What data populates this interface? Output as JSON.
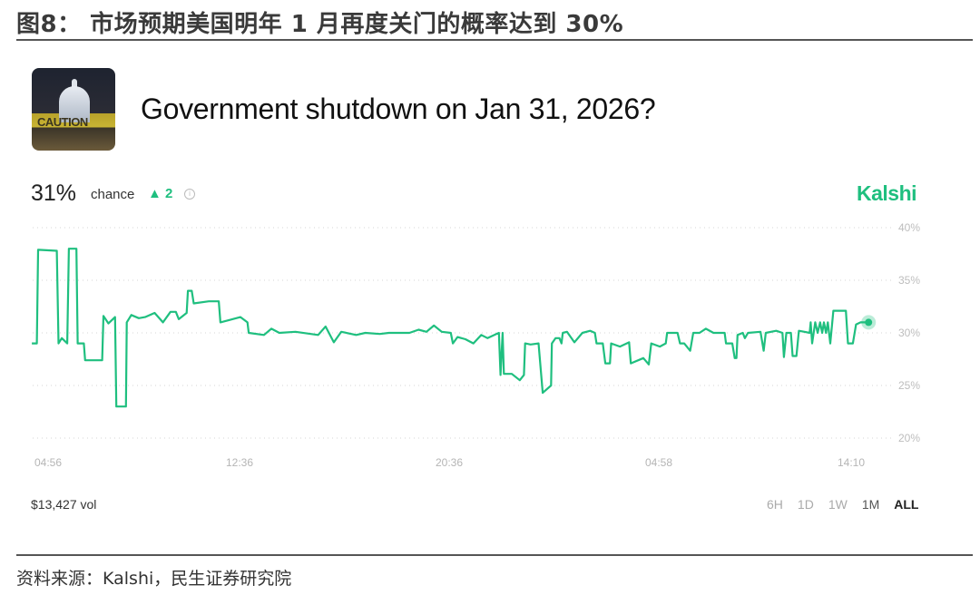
{
  "report": {
    "title": "图8：  市场预期美国明年 1 月再度关门的概率达到 30%",
    "source": "资料来源：Kalshi，民生证券研究院"
  },
  "market": {
    "thumbnail_text": "CAUTION",
    "title": "Government shutdown on Jan 31, 2026?",
    "chance_value": "31%",
    "chance_label": "chance",
    "delta_icon": "triangle-up-icon",
    "delta_value": "▲ 2",
    "info_icon": "info-icon",
    "brand": "Kalshi",
    "volume": "$13,427 vol",
    "ranges": [
      {
        "label": "6H",
        "active": false
      },
      {
        "label": "1D",
        "active": false
      },
      {
        "label": "1W",
        "active": false
      },
      {
        "label": "1M",
        "active": false
      },
      {
        "label": "ALL",
        "active": true
      }
    ]
  },
  "colors": {
    "line": "#1fbf7f",
    "brand": "#1fbf7f",
    "grid": "#d6d6d6"
  },
  "chart_data": {
    "type": "line",
    "title": "",
    "xlabel": "",
    "ylabel": "",
    "ylim": [
      20,
      40
    ],
    "yticks": [
      40,
      35,
      30,
      25,
      20
    ],
    "ytick_labels": [
      "40%",
      "35%",
      "30%",
      "25%",
      "20%"
    ],
    "xtick_labels": [
      "04:56",
      "12:36",
      "20:36",
      "04:58",
      "14:10"
    ],
    "grid": "horizontal-dotted",
    "legend": "none",
    "series": [
      {
        "points": [
          [
            "04:17",
            29
          ],
          [
            "04:29",
            29
          ],
          [
            "04:32",
            37.9
          ],
          [
            "05:17",
            37.8
          ],
          [
            "05:21",
            29
          ],
          [
            "05:29",
            29.5
          ],
          [
            "05:42",
            29
          ],
          [
            "05:46",
            38
          ],
          [
            "06:04",
            38
          ],
          [
            "06:07",
            29
          ],
          [
            "06:22",
            29
          ],
          [
            "06:25",
            27.4
          ],
          [
            "07:06",
            27.4
          ],
          [
            "07:09",
            31.6
          ],
          [
            "07:21",
            30.9
          ],
          [
            "07:37",
            31.5
          ],
          [
            "07:40",
            23
          ],
          [
            "08:03",
            23
          ],
          [
            "08:05",
            31
          ],
          [
            "08:16",
            31.7
          ],
          [
            "08:34",
            31.4
          ],
          [
            "08:49",
            31.5
          ],
          [
            "09:12",
            31.9
          ],
          [
            "09:32",
            31
          ],
          [
            "09:50",
            32
          ],
          [
            "10:03",
            32
          ],
          [
            "10:10",
            31.3
          ],
          [
            "10:29",
            31.9
          ],
          [
            "10:32",
            34
          ],
          [
            "10:41",
            34
          ],
          [
            "10:46",
            32.8
          ],
          [
            "11:22",
            33
          ],
          [
            "11:46",
            33
          ],
          [
            "11:50",
            31
          ],
          [
            "12:38",
            31.5
          ],
          [
            "12:54",
            31
          ],
          [
            "12:57",
            30
          ],
          [
            "13:32",
            29.8
          ],
          [
            "13:49",
            30.4
          ],
          [
            "14:07",
            30
          ],
          [
            "14:44",
            30.1
          ],
          [
            "15:36",
            29.8
          ],
          [
            "15:53",
            30.6
          ],
          [
            "16:12",
            29.1
          ],
          [
            "16:29",
            30.1
          ],
          [
            "17:03",
            29.8
          ],
          [
            "17:24",
            30
          ],
          [
            "17:57",
            29.9
          ],
          [
            "18:18",
            30
          ],
          [
            "19:05",
            30
          ],
          [
            "19:26",
            30.3
          ],
          [
            "19:44",
            30.1
          ],
          [
            "20:01",
            30.7
          ],
          [
            "20:19",
            30.1
          ],
          [
            "20:40",
            30
          ],
          [
            "20:45",
            29
          ],
          [
            "20:56",
            29.6
          ],
          [
            "21:15",
            29.4
          ],
          [
            "21:34",
            29
          ],
          [
            "21:53",
            29.8
          ],
          [
            "22:08",
            29.5
          ],
          [
            "22:29",
            29.9
          ],
          [
            "22:35",
            30
          ],
          [
            "22:39",
            26
          ],
          [
            "22:44",
            30
          ],
          [
            "22:47",
            26.1
          ],
          [
            "23:06",
            26.1
          ],
          [
            "23:25",
            25.5
          ],
          [
            "23:35",
            26
          ],
          [
            "23:38",
            29
          ],
          [
            "23:51",
            28.9
          ],
          [
            "00:10",
            29
          ],
          [
            "00:20",
            24.3
          ],
          [
            "00:40",
            25
          ],
          [
            "00:42",
            29
          ],
          [
            "00:51",
            29.5
          ],
          [
            "01:00",
            29.5
          ],
          [
            "01:05",
            29
          ],
          [
            "01:08",
            30
          ],
          [
            "01:18",
            30.1
          ],
          [
            "01:36",
            29.1
          ],
          [
            "01:55",
            30
          ],
          [
            "02:14",
            30.2
          ],
          [
            "02:25",
            30
          ],
          [
            "02:29",
            29
          ],
          [
            "02:44",
            29
          ],
          [
            "02:50",
            27.1
          ],
          [
            "03:01",
            27.1
          ],
          [
            "03:04",
            29
          ],
          [
            "03:25",
            28.7
          ],
          [
            "03:47",
            29.1
          ],
          [
            "03:51",
            27.1
          ],
          [
            "04:21",
            27.6
          ],
          [
            "04:34",
            27
          ],
          [
            "04:40",
            29
          ],
          [
            "05:01",
            28.7
          ],
          [
            "05:18",
            29
          ],
          [
            "05:22",
            30
          ],
          [
            "05:52",
            30
          ],
          [
            "05:59",
            29
          ],
          [
            "06:11",
            29
          ],
          [
            "06:28",
            28.3
          ],
          [
            "06:37",
            30
          ],
          [
            "06:55",
            30
          ],
          [
            "07:13",
            30.4
          ],
          [
            "07:35",
            30
          ],
          [
            "08:07",
            30
          ],
          [
            "08:11",
            29
          ],
          [
            "08:29",
            29
          ],
          [
            "08:36",
            27.6
          ],
          [
            "08:41",
            27.6
          ],
          [
            "08:44",
            29.8
          ],
          [
            "08:59",
            30
          ],
          [
            "09:05",
            29.5
          ],
          [
            "09:14",
            30
          ],
          [
            "09:50",
            30.1
          ],
          [
            "09:59",
            28.3
          ],
          [
            "10:05",
            30
          ],
          [
            "10:35",
            30.2
          ],
          [
            "10:53",
            30
          ],
          [
            "10:57",
            27.7
          ],
          [
            "11:04",
            30
          ],
          [
            "11:17",
            30
          ],
          [
            "11:22",
            27.8
          ],
          [
            "11:33",
            27.8
          ],
          [
            "11:40",
            30.2
          ],
          [
            "12:11",
            30
          ],
          [
            "12:14",
            31
          ],
          [
            "12:18",
            29
          ],
          [
            "12:27",
            31
          ],
          [
            "12:34",
            30
          ],
          [
            "12:41",
            31
          ],
          [
            "12:47",
            30
          ],
          [
            "12:52",
            31
          ],
          [
            "12:58",
            30
          ],
          [
            "13:03",
            31
          ],
          [
            "13:10",
            29
          ],
          [
            "13:19",
            32.1
          ],
          [
            "13:55",
            32.1
          ],
          [
            "14:01",
            29
          ],
          [
            "14:15",
            29
          ],
          [
            "14:24",
            30.8
          ],
          [
            "14:37",
            31
          ],
          [
            "15:00",
            31
          ]
        ]
      }
    ]
  }
}
